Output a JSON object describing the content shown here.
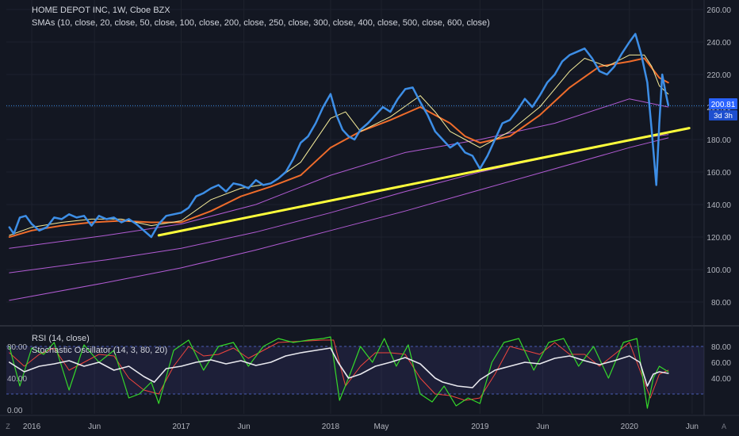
{
  "main_legend": {
    "symbol": "HOME DEPOT INC, 1W, Cboe BZX",
    "sma": "SMAs (10, close, 20, close, 50, close, 100, close, 200, close, 250, close, 300, close, 400, close, 500, close, 600, close)"
  },
  "sub_legend": {
    "rsi": "RSI (14, close)",
    "stoch": "Stochastic Oscillator (14, 3, 80, 20)"
  },
  "price_badge": {
    "price": "200.81",
    "countdown": "3d 3h"
  },
  "corner": {
    "left": "Z",
    "right": "A"
  },
  "colors": {
    "background": "#131722",
    "price": "#3d8ee6",
    "sma10": "#f5ec9a",
    "sma20": "#ef6c2b",
    "sma_long": "#b15bd3",
    "trendline": "#ffff3b",
    "rsi": "#e8e8ee",
    "stoch_k": "#35d92a",
    "stoch_d": "#f2453d",
    "badge": "#2962ff"
  },
  "chart_data": [
    {
      "type": "line",
      "title": "HOME DEPOT INC, 1W, Cboe BZX",
      "x_ticks": [
        "2016",
        "Jun",
        "2017",
        "Jun",
        "2018",
        "May",
        "2019",
        "Jun",
        "2020",
        "Jun"
      ],
      "y_ticks": [
        "80.00",
        "100.00",
        "120.00",
        "140.00",
        "160.00",
        "180.00",
        "200.00",
        "220.00",
        "240.00",
        "260.00"
      ],
      "ylim": [
        70,
        265
      ],
      "xlim": [
        2015.83,
        2020.5
      ],
      "last_price": 200.81,
      "series": [
        {
          "name": "HOME DEPOT INC",
          "x": [
            2015.85,
            2015.88,
            2015.92,
            2015.96,
            2016.0,
            2016.05,
            2016.1,
            2016.15,
            2016.2,
            2016.25,
            2016.3,
            2016.35,
            2016.4,
            2016.45,
            2016.5,
            2016.55,
            2016.6,
            2016.65,
            2016.7,
            2016.75,
            2016.8,
            2016.85,
            2016.9,
            2016.95,
            2017.0,
            2017.05,
            2017.1,
            2017.15,
            2017.2,
            2017.25,
            2017.3,
            2017.35,
            2017.4,
            2017.45,
            2017.5,
            2017.55,
            2017.6,
            2017.65,
            2017.7,
            2017.75,
            2017.8,
            2017.85,
            2017.9,
            2017.95,
            2018.0,
            2018.04,
            2018.08,
            2018.12,
            2018.16,
            2018.2,
            2018.25,
            2018.3,
            2018.35,
            2018.4,
            2018.45,
            2018.5,
            2018.55,
            2018.6,
            2018.65,
            2018.7,
            2018.75,
            2018.8,
            2018.85,
            2018.9,
            2018.95,
            2019.0,
            2019.05,
            2019.1,
            2019.15,
            2019.2,
            2019.25,
            2019.3,
            2019.35,
            2019.4,
            2019.45,
            2019.5,
            2019.55,
            2019.6,
            2019.65,
            2019.7,
            2019.75,
            2019.8,
            2019.85,
            2019.9,
            2019.95,
            2020.0,
            2020.04,
            2020.08,
            2020.12,
            2020.15,
            2020.18,
            2020.2,
            2020.22,
            2020.24,
            2020.26
          ],
          "values": [
            126,
            122,
            132,
            133,
            128,
            124,
            126,
            132,
            131,
            134,
            132,
            133,
            127,
            133,
            131,
            132,
            129,
            131,
            128,
            124,
            120,
            128,
            133,
            134,
            135,
            138,
            145,
            147,
            150,
            152,
            148,
            153,
            152,
            150,
            155,
            152,
            153,
            156,
            160,
            168,
            178,
            182,
            190,
            200,
            208,
            195,
            186,
            182,
            180,
            186,
            190,
            195,
            200,
            197,
            205,
            211,
            212,
            203,
            195,
            185,
            180,
            175,
            178,
            172,
            170,
            162,
            170,
            180,
            190,
            192,
            198,
            205,
            200,
            207,
            215,
            220,
            228,
            232,
            234,
            236,
            230,
            222,
            220,
            225,
            233,
            240,
            245,
            232,
            215,
            185,
            152,
            190,
            220,
            210,
            201
          ]
        },
        {
          "name": "SMA 10",
          "x": [
            2015.85,
            2016.0,
            2016.2,
            2016.4,
            2016.6,
            2016.8,
            2017.0,
            2017.2,
            2017.4,
            2017.6,
            2017.8,
            2018.0,
            2018.1,
            2018.2,
            2018.4,
            2018.6,
            2018.7,
            2018.8,
            2018.9,
            2019.0,
            2019.2,
            2019.4,
            2019.6,
            2019.7,
            2019.85,
            2020.0,
            2020.1,
            2020.15,
            2020.2,
            2020.26
          ],
          "values": [
            121,
            126,
            129,
            131,
            131,
            127,
            130,
            143,
            150,
            153,
            166,
            193,
            197,
            185,
            194,
            207,
            197,
            185,
            180,
            175,
            185,
            200,
            222,
            230,
            225,
            232,
            232,
            225,
            213,
            208
          ]
        },
        {
          "name": "SMA 20",
          "x": [
            2015.85,
            2016.0,
            2016.2,
            2016.4,
            2016.6,
            2016.8,
            2017.0,
            2017.2,
            2017.4,
            2017.6,
            2017.8,
            2018.0,
            2018.2,
            2018.4,
            2018.6,
            2018.8,
            2018.9,
            2019.0,
            2019.2,
            2019.4,
            2019.6,
            2019.8,
            2020.0,
            2020.1,
            2020.2,
            2020.26
          ],
          "values": [
            120,
            124,
            127,
            129,
            130,
            129,
            129,
            136,
            145,
            151,
            158,
            175,
            185,
            192,
            200,
            190,
            182,
            178,
            182,
            195,
            212,
            225,
            228,
            230,
            218,
            215
          ]
        },
        {
          "name": "SMA 50",
          "x": [
            2015.85,
            2016.5,
            2017.0,
            2017.5,
            2018.0,
            2018.5,
            2019.0,
            2019.5,
            2020.0,
            2020.26
          ],
          "values": [
            113,
            121,
            128,
            140,
            158,
            172,
            180,
            190,
            205,
            200
          ]
        },
        {
          "name": "SMA 200",
          "x": [
            2015.85,
            2016.5,
            2017.0,
            2017.5,
            2018.0,
            2018.5,
            2019.0,
            2019.5,
            2020.0,
            2020.26
          ],
          "values": [
            98,
            106,
            113,
            123,
            135,
            148,
            160,
            170,
            180,
            183
          ]
        },
        {
          "name": "SMA 400",
          "x": [
            2015.85,
            2016.5,
            2017.0,
            2017.5,
            2018.0,
            2018.5,
            2019.0,
            2019.5,
            2020.0,
            2020.26
          ],
          "values": [
            81,
            92,
            101,
            112,
            124,
            136,
            149,
            162,
            175,
            181
          ]
        },
        {
          "name": "Trendline",
          "x": [
            2016.85,
            2020.4
          ],
          "values": [
            121,
            187
          ]
        }
      ]
    },
    {
      "type": "line",
      "title": "RSI (14, close) / Stochastic Oscillator (14, 3, 80, 20)",
      "y_ticks_left": [
        "0.00",
        "40.00",
        "80.00"
      ],
      "y_ticks_right": [
        "40.00",
        "60.00",
        "80.00"
      ],
      "band": [
        20,
        80
      ],
      "ylim": [
        -5,
        100
      ],
      "series": [
        {
          "name": "RSI (14, close)",
          "x": [
            2015.85,
            2015.95,
            2016.05,
            2016.15,
            2016.25,
            2016.35,
            2016.45,
            2016.55,
            2016.65,
            2016.75,
            2016.82,
            2016.9,
            2017.0,
            2017.1,
            2017.2,
            2017.3,
            2017.4,
            2017.5,
            2017.6,
            2017.7,
            2017.8,
            2017.9,
            2018.0,
            2018.05,
            2018.12,
            2018.2,
            2018.3,
            2018.4,
            2018.5,
            2018.6,
            2018.7,
            2018.75,
            2018.85,
            2018.95,
            2019.0,
            2019.1,
            2019.2,
            2019.3,
            2019.4,
            2019.5,
            2019.6,
            2019.7,
            2019.8,
            2019.9,
            2020.0,
            2020.07,
            2020.12,
            2020.16,
            2020.2,
            2020.26
          ],
          "values": [
            60,
            48,
            55,
            58,
            62,
            55,
            60,
            50,
            55,
            42,
            35,
            52,
            55,
            60,
            63,
            58,
            62,
            56,
            60,
            68,
            72,
            75,
            78,
            60,
            40,
            45,
            55,
            60,
            66,
            58,
            40,
            35,
            30,
            28,
            38,
            50,
            55,
            60,
            58,
            65,
            68,
            62,
            57,
            62,
            68,
            60,
            30,
            45,
            48,
            46
          ]
        },
        {
          "name": "Stochastic %K",
          "x": [
            2015.85,
            2015.92,
            2016.0,
            2016.08,
            2016.15,
            2016.25,
            2016.35,
            2016.45,
            2016.55,
            2016.65,
            2016.72,
            2016.8,
            2016.85,
            2016.95,
            2017.05,
            2017.15,
            2017.25,
            2017.35,
            2017.45,
            2017.55,
            2017.65,
            2017.75,
            2017.85,
            2017.95,
            2018.0,
            2018.06,
            2018.12,
            2018.2,
            2018.28,
            2018.36,
            2018.44,
            2018.52,
            2018.6,
            2018.68,
            2018.76,
            2018.84,
            2018.92,
            2019.0,
            2019.08,
            2019.16,
            2019.26,
            2019.36,
            2019.46,
            2019.56,
            2019.66,
            2019.76,
            2019.86,
            2019.96,
            2020.05,
            2020.12,
            2020.16,
            2020.2,
            2020.26
          ],
          "values": [
            80,
            30,
            78,
            70,
            85,
            25,
            82,
            60,
            75,
            15,
            20,
            35,
            8,
            75,
            88,
            50,
            80,
            85,
            55,
            80,
            90,
            85,
            88,
            90,
            92,
            12,
            40,
            80,
            60,
            90,
            55,
            82,
            20,
            10,
            30,
            5,
            15,
            8,
            60,
            85,
            90,
            50,
            85,
            90,
            55,
            80,
            40,
            85,
            90,
            2,
            40,
            55,
            48
          ]
        },
        {
          "name": "Stochastic %D",
          "x": [
            2015.85,
            2015.95,
            2016.05,
            2016.15,
            2016.25,
            2016.35,
            2016.45,
            2016.55,
            2016.65,
            2016.75,
            2016.85,
            2016.95,
            2017.05,
            2017.15,
            2017.25,
            2017.35,
            2017.45,
            2017.55,
            2017.65,
            2017.75,
            2017.85,
            2017.95,
            2018.02,
            2018.1,
            2018.2,
            2018.3,
            2018.4,
            2018.5,
            2018.6,
            2018.7,
            2018.8,
            2018.9,
            2019.0,
            2019.1,
            2019.2,
            2019.3,
            2019.4,
            2019.5,
            2019.6,
            2019.7,
            2019.8,
            2019.9,
            2020.0,
            2020.08,
            2020.14,
            2020.2,
            2020.26
          ],
          "values": [
            72,
            55,
            70,
            78,
            50,
            60,
            70,
            68,
            40,
            25,
            20,
            55,
            80,
            68,
            70,
            78,
            65,
            75,
            85,
            86,
            87,
            88,
            88,
            30,
            55,
            72,
            72,
            70,
            40,
            20,
            18,
            12,
            15,
            45,
            80,
            75,
            70,
            85,
            70,
            70,
            55,
            70,
            85,
            45,
            15,
            45,
            50
          ]
        }
      ]
    }
  ],
  "x_axis_labels": [
    "2016",
    "Jun",
    "2017",
    "Jun",
    "2018",
    "May",
    "2019",
    "Jun",
    "2020",
    "Jun"
  ]
}
